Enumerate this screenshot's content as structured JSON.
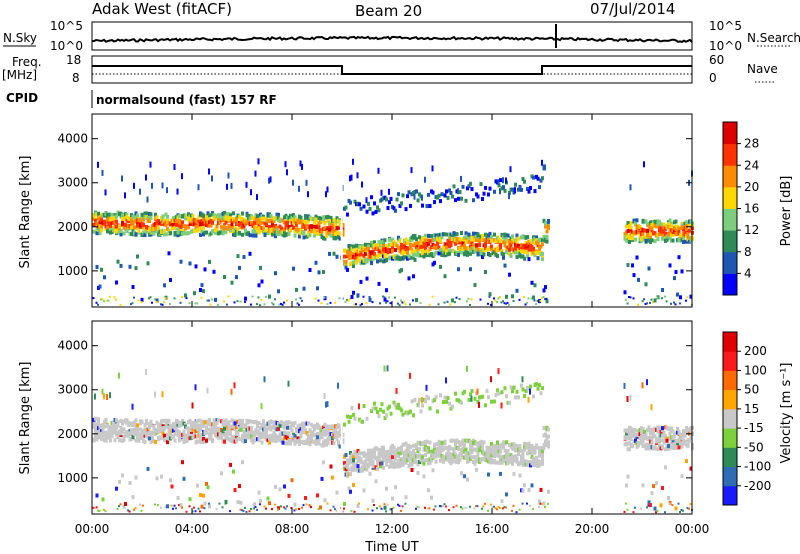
{
  "header": {
    "radar": "Adak West (fitACF)",
    "beam": "Beam 20",
    "date": "07/Jul/2014"
  },
  "panels": {
    "nsky": {
      "left_label": "N.Sky",
      "right_label": "N.Search",
      "left_ticks": [
        "10^5",
        "10^0"
      ],
      "right_ticks": [
        "10^5",
        "10^0"
      ]
    },
    "freq": {
      "left_label": "Freq.",
      "left_unit": "[MHz]",
      "right_label": "Nave",
      "left_ticks": [
        "18",
        "8"
      ],
      "right_ticks": [
        "60",
        "0"
      ]
    },
    "cpid": {
      "label": "CPID",
      "program": "normalsound (fast) 157 RF"
    }
  },
  "chart_data": [
    {
      "type": "heatmap",
      "title": "",
      "xlabel": "",
      "ylabel": "Slant Range [km]",
      "x_ticks": [
        "00:00",
        "04:00",
        "08:00",
        "12:00",
        "16:00",
        "20:00",
        "00:00"
      ],
      "y_ticks": [
        "1000",
        "2000",
        "3000",
        "4000"
      ],
      "ylim": [
        180,
        4560
      ],
      "colorbar": {
        "label": "Power [dB]",
        "ticks": [
          "4",
          "8",
          "12",
          "16",
          "20",
          "24",
          "28"
        ],
        "range": [
          0,
          32
        ],
        "colors": [
          "#0000ff",
          "#1e56b4",
          "#2e8b57",
          "#7ccd7c",
          "#ffd700",
          "#ff8c00",
          "#ff3300",
          "#dd0000"
        ]
      }
    },
    {
      "type": "heatmap",
      "title": "",
      "xlabel": "Time UT",
      "ylabel": "Slant Range [km]",
      "x_ticks": [
        "00:00",
        "04:00",
        "08:00",
        "12:00",
        "16:00",
        "20:00",
        "00:00"
      ],
      "y_ticks": [
        "1000",
        "2000",
        "3000",
        "4000"
      ],
      "ylim": [
        180,
        4560
      ],
      "colorbar": {
        "label": "Velocity [m s⁻¹]",
        "ticks": [
          "200",
          "100",
          "50",
          "15",
          "-15",
          "-50",
          "-100",
          "-200"
        ],
        "colors": [
          "#1a1aff",
          "#2e6db4",
          "#2e8b57",
          "#7cd13c",
          "#c8c8c8",
          "#ffa500",
          "#ff6a00",
          "#ff1a1a",
          "#e00000"
        ]
      }
    }
  ]
}
